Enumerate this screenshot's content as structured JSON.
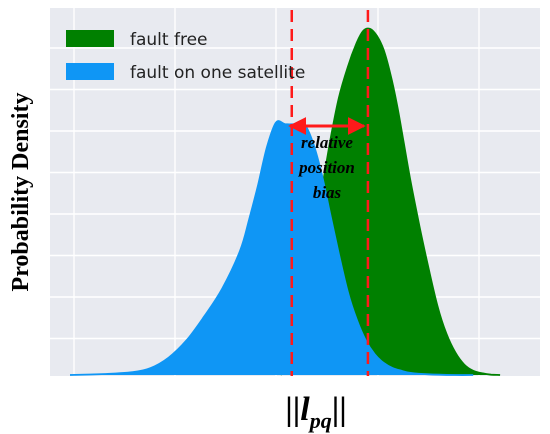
{
  "chart_data": {
    "type": "area",
    "title": "",
    "xlabel_parts": {
      "prefix": "||",
      "main": "l",
      "sub": "pq",
      "suffix": "||"
    },
    "ylabel": "Probability Density",
    "xlim": [
      0,
      100
    ],
    "ylim": [
      0,
      1
    ],
    "grid": true,
    "legend_position": "top-left",
    "series": [
      {
        "name": "fault free",
        "color": "#008000",
        "x": [
          47,
          48,
          49,
          50,
          51,
          52,
          54,
          56,
          58,
          60,
          62,
          64,
          65.5,
          67,
          68.5,
          70,
          71.5,
          73,
          74.5,
          76,
          78,
          80,
          82,
          84,
          86,
          88,
          90,
          92,
          94,
          96
        ],
        "y": [
          0.0,
          0.02,
          0.05,
          0.09,
          0.14,
          0.22,
          0.36,
          0.52,
          0.67,
          0.8,
          0.89,
          0.96,
          0.995,
          1.0,
          0.98,
          0.94,
          0.87,
          0.78,
          0.67,
          0.56,
          0.43,
          0.31,
          0.2,
          0.12,
          0.065,
          0.03,
          0.012,
          0.005,
          0.001,
          0.0
        ]
      },
      {
        "name": "fault on one satellite",
        "color": "#0f96f5",
        "x": [
          0,
          8,
          14,
          18,
          22,
          26,
          30,
          34,
          38,
          40,
          42,
          44,
          46,
          48,
          50,
          52,
          54,
          56,
          58,
          60,
          62,
          64,
          66,
          68,
          70,
          72,
          74,
          76,
          80,
          86,
          90
        ],
        "y": [
          0.0,
          0.003,
          0.008,
          0.02,
          0.05,
          0.1,
          0.17,
          0.25,
          0.36,
          0.45,
          0.55,
          0.66,
          0.73,
          0.725,
          0.725,
          0.73,
          0.68,
          0.59,
          0.47,
          0.35,
          0.24,
          0.16,
          0.1,
          0.06,
          0.035,
          0.02,
          0.012,
          0.006,
          0.002,
          0.0,
          0.0
        ]
      }
    ],
    "vlines": {
      "color": "#ff1a1a",
      "x": [
        49.5,
        66.5
      ]
    },
    "annotation": {
      "lines": [
        "relative",
        "position",
        "bias"
      ]
    }
  }
}
